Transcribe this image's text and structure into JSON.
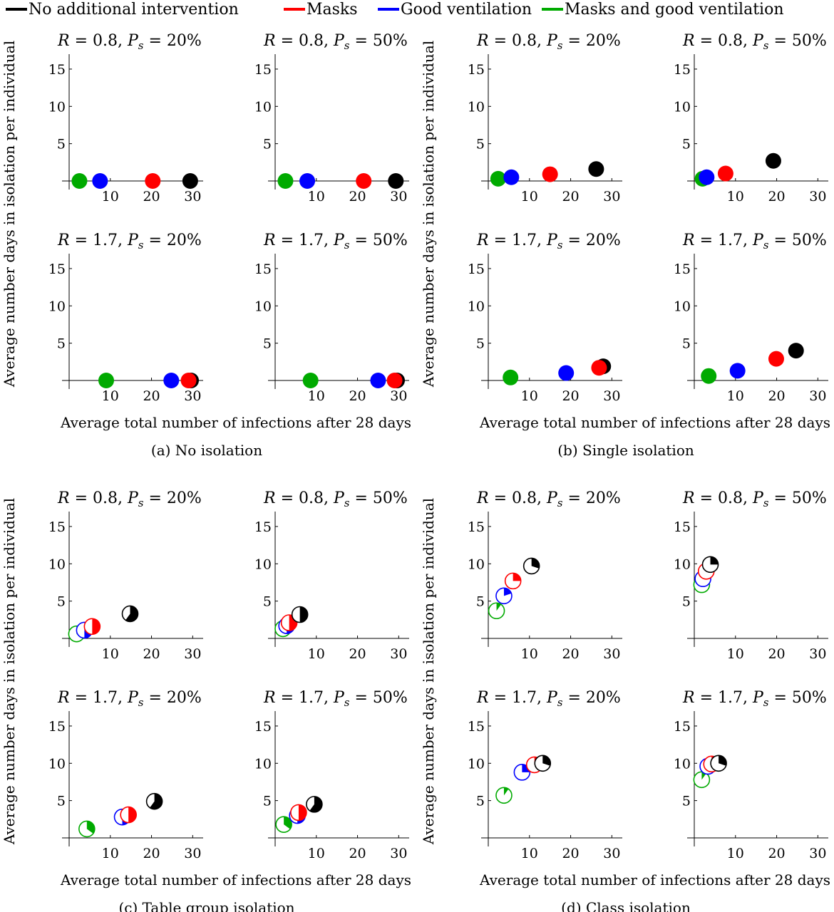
{
  "legend": [
    {
      "label": "No additional intervention",
      "color": "#000000",
      "key": "none"
    },
    {
      "label": "Masks",
      "color": "#ff0000",
      "key": "masks"
    },
    {
      "label": "Good ventilation",
      "color": "#0000ff",
      "key": "vent"
    },
    {
      "label": "Masks and good ventilation",
      "color": "#00aa00",
      "key": "both"
    }
  ],
  "axes": {
    "ylabel": "Average number days in isolation per individual",
    "xlabel": "Average total number of infections after 28 days",
    "xticks": [
      "10",
      "20",
      "30"
    ],
    "yticks": [
      "5",
      "10",
      "15"
    ]
  },
  "chart_data": [
    {
      "type": "scatter",
      "caption": "(a) No isolation",
      "xlim": [
        0,
        32
      ],
      "ylim": [
        0,
        17
      ],
      "panels": [
        {
          "title": "R = 0.8, Ps = 20%",
          "points": [
            {
              "series": "both",
              "x": 2.5,
              "y": 0,
              "filled": 1.0
            },
            {
              "series": "vent",
              "x": 7.5,
              "y": 0,
              "filled": 1.0
            },
            {
              "series": "masks",
              "x": 20.3,
              "y": 0,
              "filled": 1.0
            },
            {
              "series": "none",
              "x": 29.4,
              "y": 0,
              "filled": 1.0
            }
          ]
        },
        {
          "title": "R = 0.8, Ps = 50%",
          "points": [
            {
              "series": "both",
              "x": 2.5,
              "y": 0,
              "filled": 1.0
            },
            {
              "series": "vent",
              "x": 7.8,
              "y": 0,
              "filled": 1.0
            },
            {
              "series": "masks",
              "x": 21.5,
              "y": 0,
              "filled": 1.0
            },
            {
              "series": "none",
              "x": 29.3,
              "y": 0,
              "filled": 1.0
            }
          ]
        },
        {
          "title": "R = 1.7, Ps = 20%",
          "points": [
            {
              "series": "both",
              "x": 9.0,
              "y": 0,
              "filled": 1.0
            },
            {
              "series": "vent",
              "x": 24.8,
              "y": 0,
              "filled": 1.0
            },
            {
              "series": "none",
              "x": 29.6,
              "y": 0,
              "filled": 1.0
            },
            {
              "series": "masks",
              "x": 29.0,
              "y": 0,
              "filled": 1.0
            }
          ]
        },
        {
          "title": "R = 1.7, Ps = 50%",
          "points": [
            {
              "series": "both",
              "x": 8.6,
              "y": 0,
              "filled": 1.0
            },
            {
              "series": "vent",
              "x": 25.0,
              "y": 0,
              "filled": 1.0
            },
            {
              "series": "none",
              "x": 29.6,
              "y": 0,
              "filled": 1.0
            },
            {
              "series": "masks",
              "x": 29.0,
              "y": 0,
              "filled": 1.0
            }
          ]
        }
      ]
    },
    {
      "type": "scatter",
      "caption": "(b) Single isolation",
      "xlim": [
        0,
        32
      ],
      "ylim": [
        0,
        17
      ],
      "panels": [
        {
          "title": "R = 0.8, Ps = 20%",
          "points": [
            {
              "series": "both",
              "x": 2.4,
              "y": 0.3,
              "filled": 1.0
            },
            {
              "series": "vent",
              "x": 5.6,
              "y": 0.5,
              "filled": 1.0
            },
            {
              "series": "masks",
              "x": 15.0,
              "y": 0.9,
              "filled": 1.0
            },
            {
              "series": "none",
              "x": 26.2,
              "y": 1.6,
              "filled": 1.0
            }
          ]
        },
        {
          "title": "R = 0.8, Ps = 50%",
          "points": [
            {
              "series": "both",
              "x": 2.0,
              "y": 0.3,
              "filled": 1.0
            },
            {
              "series": "vent",
              "x": 3.0,
              "y": 0.5,
              "filled": 1.0
            },
            {
              "series": "masks",
              "x": 7.6,
              "y": 1.0,
              "filled": 1.0
            },
            {
              "series": "none",
              "x": 19.2,
              "y": 2.7,
              "filled": 1.0
            }
          ]
        },
        {
          "title": "R = 1.7, Ps = 20%",
          "points": [
            {
              "series": "both",
              "x": 5.4,
              "y": 0.4,
              "filled": 1.0
            },
            {
              "series": "vent",
              "x": 18.9,
              "y": 1.0,
              "filled": 1.0
            },
            {
              "series": "none",
              "x": 27.9,
              "y": 1.9,
              "filled": 1.0
            },
            {
              "series": "masks",
              "x": 26.9,
              "y": 1.7,
              "filled": 1.0
            }
          ]
        },
        {
          "title": "R = 1.7, Ps = 50%",
          "points": [
            {
              "series": "both",
              "x": 3.5,
              "y": 0.6,
              "filled": 1.0
            },
            {
              "series": "vent",
              "x": 10.5,
              "y": 1.3,
              "filled": 1.0
            },
            {
              "series": "masks",
              "x": 19.9,
              "y": 2.9,
              "filled": 1.0
            },
            {
              "series": "none",
              "x": 24.7,
              "y": 4.0,
              "filled": 1.0
            }
          ]
        }
      ]
    },
    {
      "type": "scatter",
      "caption": "(c) Table group isolation",
      "xlim": [
        0,
        32
      ],
      "ylim": [
        0,
        17
      ],
      "panels": [
        {
          "title": "R = 0.8, Ps = 20%",
          "points": [
            {
              "series": "both",
              "x": 1.8,
              "y": 0.6,
              "filled": 0.35
            },
            {
              "series": "vent",
              "x": 3.7,
              "y": 1.1,
              "filled": 0.5
            },
            {
              "series": "masks",
              "x": 5.6,
              "y": 1.6,
              "filled": 0.5
            },
            {
              "series": "none",
              "x": 14.8,
              "y": 3.3,
              "filled": 0.6
            }
          ]
        },
        {
          "title": "R = 0.8, Ps = 50%",
          "points": [
            {
              "series": "both",
              "x": 1.9,
              "y": 1.3,
              "filled": 0.35
            },
            {
              "series": "vent",
              "x": 2.8,
              "y": 1.7,
              "filled": 0.5
            },
            {
              "series": "masks",
              "x": 3.4,
              "y": 2.1,
              "filled": 0.5
            },
            {
              "series": "none",
              "x": 6.0,
              "y": 3.2,
              "filled": 0.5
            }
          ]
        },
        {
          "title": "R = 1.7, Ps = 20%",
          "points": [
            {
              "series": "both",
              "x": 4.3,
              "y": 1.2,
              "filled": 0.35
            },
            {
              "series": "vent",
              "x": 12.9,
              "y": 2.8,
              "filled": 0.5
            },
            {
              "series": "masks",
              "x": 14.4,
              "y": 3.1,
              "filled": 0.5
            },
            {
              "series": "none",
              "x": 20.7,
              "y": 4.9,
              "filled": 0.6
            }
          ]
        },
        {
          "title": "R = 1.7, Ps = 50%",
          "points": [
            {
              "series": "both",
              "x": 2.1,
              "y": 1.8,
              "filled": 0.35
            },
            {
              "series": "vent",
              "x": 5.4,
              "y": 3.0,
              "filled": 0.5
            },
            {
              "series": "masks",
              "x": 5.7,
              "y": 3.4,
              "filled": 0.5
            },
            {
              "series": "none",
              "x": 9.5,
              "y": 4.5,
              "filled": 0.6
            }
          ]
        }
      ]
    },
    {
      "type": "scatter",
      "caption": "(d) Class isolation",
      "xlim": [
        0,
        32
      ],
      "ylim": [
        0,
        17
      ],
      "panels": [
        {
          "title": "R = 0.8, Ps = 20%",
          "points": [
            {
              "series": "both",
              "x": 2.0,
              "y": 3.7,
              "filled": 0.1
            },
            {
              "series": "vent",
              "x": 3.8,
              "y": 5.7,
              "filled": 0.2
            },
            {
              "series": "masks",
              "x": 6.0,
              "y": 7.7,
              "filled": 0.25
            },
            {
              "series": "none",
              "x": 10.5,
              "y": 9.7,
              "filled": 0.3
            }
          ]
        },
        {
          "title": "R = 0.8, Ps = 50%",
          "points": [
            {
              "series": "both",
              "x": 1.8,
              "y": 7.2,
              "filled": 0.1
            },
            {
              "series": "vent",
              "x": 2.1,
              "y": 8.0,
              "filled": 0.15
            },
            {
              "series": "masks",
              "x": 2.9,
              "y": 9.0,
              "filled": 0.2
            },
            {
              "series": "none",
              "x": 3.9,
              "y": 9.9,
              "filled": 0.25
            }
          ]
        },
        {
          "title": "R = 1.7, Ps = 20%",
          "points": [
            {
              "series": "both",
              "x": 3.8,
              "y": 5.7,
              "filled": 0.1
            },
            {
              "series": "vent",
              "x": 8.2,
              "y": 8.8,
              "filled": 0.25
            },
            {
              "series": "masks",
              "x": 11.2,
              "y": 9.8,
              "filled": 0.3
            },
            {
              "series": "none",
              "x": 13.2,
              "y": 10.0,
              "filled": 0.3
            }
          ]
        },
        {
          "title": "R = 1.7, Ps = 50%",
          "points": [
            {
              "series": "both",
              "x": 1.8,
              "y": 7.8,
              "filled": 0.1
            },
            {
              "series": "vent",
              "x": 3.3,
              "y": 9.6,
              "filled": 0.2
            },
            {
              "series": "masks",
              "x": 4.2,
              "y": 9.9,
              "filled": 0.25
            },
            {
              "series": "none",
              "x": 5.9,
              "y": 10.0,
              "filled": 0.3
            }
          ]
        }
      ]
    }
  ]
}
